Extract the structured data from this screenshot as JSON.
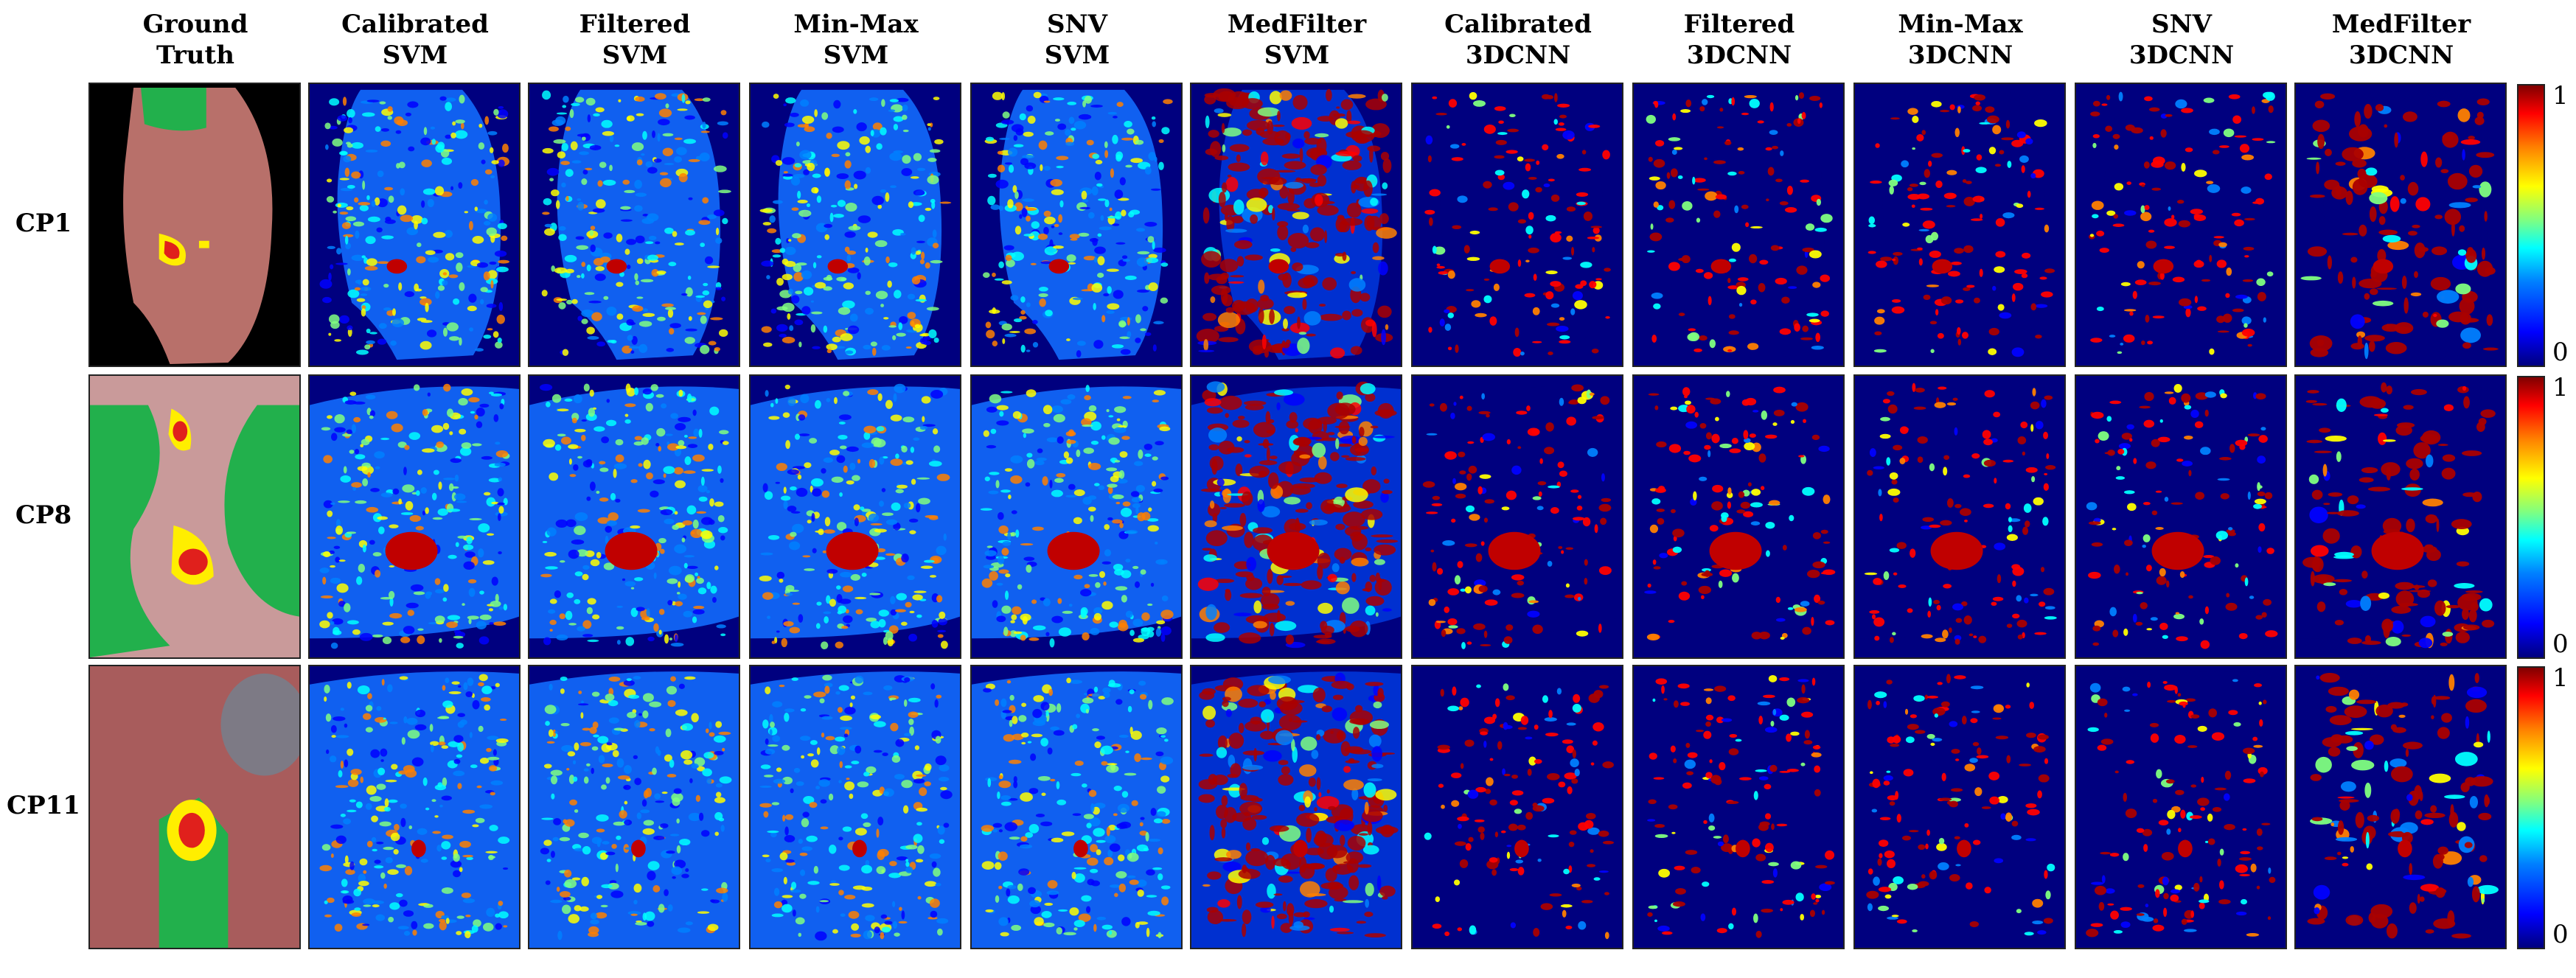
{
  "figure": {
    "columns": [
      {
        "line1": "Ground",
        "line2": "Truth"
      },
      {
        "line1": "Calibrated",
        "line2": "SVM"
      },
      {
        "line1": "Filtered",
        "line2": "SVM"
      },
      {
        "line1": "Min-Max",
        "line2": "SVM"
      },
      {
        "line1": "SNV",
        "line2": "SVM"
      },
      {
        "line1": "MedFilter",
        "line2": "SVM"
      },
      {
        "line1": "Calibrated",
        "line2": "3DCNN"
      },
      {
        "line1": "Filtered",
        "line2": "3DCNN"
      },
      {
        "line1": "Min-Max",
        "line2": "3DCNN"
      },
      {
        "line1": "SNV",
        "line2": "3DCNN"
      },
      {
        "line1": "MedFilter",
        "line2": "3DCNN"
      }
    ],
    "rows": [
      {
        "label": "CP1"
      },
      {
        "label": "CP8"
      },
      {
        "label": "CP11"
      }
    ],
    "colorbar": {
      "max_label": "1",
      "min_label": "0",
      "colormap": "jet"
    }
  },
  "colors": {
    "healthy": "#22b04c",
    "tumor": "#e0201c",
    "tumor_border": "#ffee00",
    "background_map": "#00007f"
  }
}
